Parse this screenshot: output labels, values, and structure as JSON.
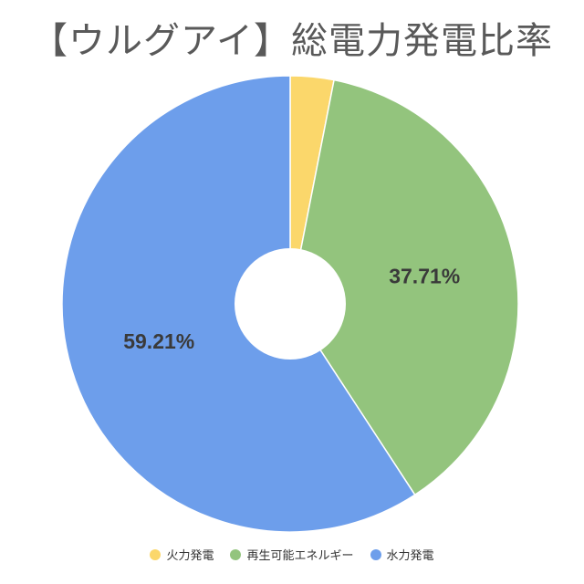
{
  "chart_data": {
    "type": "pie",
    "title": "【ウルグアイ】総電力発電比率",
    "donut": true,
    "categories": [
      "火力発電",
      "再生可能エネルギー",
      "水力発電"
    ],
    "values": [
      3.08,
      37.71,
      59.21
    ],
    "colors": [
      "#fbd76b",
      "#93c47d",
      "#6d9eeb"
    ],
    "data_labels": [
      "",
      "37.71%",
      "59.21%"
    ],
    "legend_position": "bottom"
  }
}
